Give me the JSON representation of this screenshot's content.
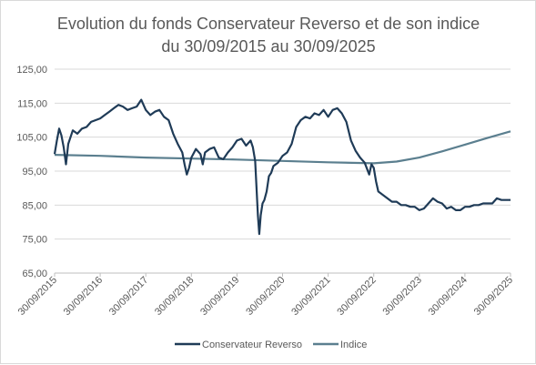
{
  "chart_data": {
    "type": "line",
    "title": "Evolution du fonds Conservateur Reverso et de son indice",
    "subtitle": "du 30/09/2015 au 30/09/2025",
    "xlabel": "",
    "ylabel": "",
    "ylim": [
      65,
      125
    ],
    "yticks": [
      "65,00",
      "75,00",
      "85,00",
      "95,00",
      "105,00",
      "115,00",
      "125,00"
    ],
    "x": [
      "30/09/2015",
      "30/09/2016",
      "30/09/2017",
      "30/09/2018",
      "30/09/2019",
      "30/09/2020",
      "30/09/2021",
      "30/09/2022",
      "30/09/2023",
      "30/09/2024",
      "30/09/2025"
    ],
    "grid": true,
    "legend_position": "bottom",
    "series": [
      {
        "name": "Conservateur Reverso",
        "color": "#1f3b57",
        "points": [
          [
            0.0,
            100.0
          ],
          [
            0.05,
            104.0
          ],
          [
            0.1,
            107.5
          ],
          [
            0.15,
            105.5
          ],
          [
            0.2,
            102.0
          ],
          [
            0.25,
            97.0
          ],
          [
            0.3,
            103.0
          ],
          [
            0.4,
            107.0
          ],
          [
            0.5,
            106.0
          ],
          [
            0.6,
            107.5
          ],
          [
            0.7,
            108.0
          ],
          [
            0.8,
            109.5
          ],
          [
            0.9,
            110.0
          ],
          [
            1.0,
            110.5
          ],
          [
            1.1,
            111.5
          ],
          [
            1.2,
            112.5
          ],
          [
            1.3,
            113.5
          ],
          [
            1.4,
            114.5
          ],
          [
            1.5,
            114.0
          ],
          [
            1.6,
            113.0
          ],
          [
            1.7,
            113.5
          ],
          [
            1.8,
            114.0
          ],
          [
            1.9,
            116.0
          ],
          [
            2.0,
            113.0
          ],
          [
            2.1,
            111.5
          ],
          [
            2.2,
            112.5
          ],
          [
            2.3,
            113.0
          ],
          [
            2.4,
            111.0
          ],
          [
            2.5,
            110.0
          ],
          [
            2.6,
            106.0
          ],
          [
            2.7,
            103.0
          ],
          [
            2.8,
            100.5
          ],
          [
            2.85,
            97.0
          ],
          [
            2.9,
            94.0
          ],
          [
            2.95,
            96.0
          ],
          [
            3.0,
            99.0
          ],
          [
            3.1,
            101.5
          ],
          [
            3.2,
            100.0
          ],
          [
            3.25,
            97.0
          ],
          [
            3.3,
            100.5
          ],
          [
            3.4,
            101.5
          ],
          [
            3.5,
            102.0
          ],
          [
            3.6,
            99.0
          ],
          [
            3.7,
            98.5
          ],
          [
            3.8,
            100.5
          ],
          [
            3.9,
            102.0
          ],
          [
            4.0,
            104.0
          ],
          [
            4.1,
            104.5
          ],
          [
            4.2,
            102.5
          ],
          [
            4.3,
            104.0
          ],
          [
            4.35,
            102.0
          ],
          [
            4.4,
            98.0
          ],
          [
            4.43,
            90.0
          ],
          [
            4.46,
            82.0
          ],
          [
            4.49,
            76.5
          ],
          [
            4.52,
            82.0
          ],
          [
            4.56,
            85.5
          ],
          [
            4.6,
            86.5
          ],
          [
            4.65,
            89.0
          ],
          [
            4.7,
            93.5
          ],
          [
            4.75,
            94.5
          ],
          [
            4.8,
            96.5
          ],
          [
            4.9,
            97.5
          ],
          [
            5.0,
            99.5
          ],
          [
            5.1,
            100.5
          ],
          [
            5.2,
            103.0
          ],
          [
            5.3,
            108.0
          ],
          [
            5.4,
            110.0
          ],
          [
            5.5,
            111.0
          ],
          [
            5.6,
            110.5
          ],
          [
            5.7,
            112.0
          ],
          [
            5.8,
            111.5
          ],
          [
            5.9,
            113.0
          ],
          [
            6.0,
            111.0
          ],
          [
            6.1,
            113.0
          ],
          [
            6.2,
            113.5
          ],
          [
            6.3,
            112.0
          ],
          [
            6.4,
            109.5
          ],
          [
            6.5,
            104.0
          ],
          [
            6.6,
            101.0
          ],
          [
            6.7,
            99.0
          ],
          [
            6.8,
            97.5
          ],
          [
            6.9,
            94.0
          ],
          [
            6.95,
            97.0
          ],
          [
            7.0,
            96.0
          ],
          [
            7.05,
            92.0
          ],
          [
            7.1,
            89.0
          ],
          [
            7.2,
            88.0
          ],
          [
            7.3,
            87.0
          ],
          [
            7.4,
            86.0
          ],
          [
            7.5,
            86.0
          ],
          [
            7.6,
            85.0
          ],
          [
            7.7,
            85.0
          ],
          [
            7.8,
            84.5
          ],
          [
            7.9,
            84.5
          ],
          [
            8.0,
            83.5
          ],
          [
            8.1,
            84.0
          ],
          [
            8.2,
            85.5
          ],
          [
            8.3,
            87.0
          ],
          [
            8.4,
            86.0
          ],
          [
            8.5,
            85.5
          ],
          [
            8.6,
            84.0
          ],
          [
            8.7,
            84.5
          ],
          [
            8.8,
            83.5
          ],
          [
            8.9,
            83.5
          ],
          [
            9.0,
            84.5
          ],
          [
            9.1,
            84.5
          ],
          [
            9.2,
            85.0
          ],
          [
            9.3,
            85.0
          ],
          [
            9.4,
            85.5
          ],
          [
            9.5,
            85.5
          ],
          [
            9.6,
            85.5
          ],
          [
            9.7,
            87.0
          ],
          [
            9.8,
            86.5
          ],
          [
            9.9,
            86.5
          ],
          [
            10.0,
            86.5
          ]
        ]
      },
      {
        "name": "Indice",
        "color": "#5b7f8f",
        "points": [
          [
            0.0,
            99.8
          ],
          [
            1.0,
            99.5
          ],
          [
            2.0,
            99.0
          ],
          [
            3.0,
            98.7
          ],
          [
            4.0,
            98.4
          ],
          [
            5.0,
            98.0
          ],
          [
            6.0,
            97.6
          ],
          [
            7.0,
            97.3
          ],
          [
            7.5,
            97.8
          ],
          [
            8.0,
            99.0
          ],
          [
            8.5,
            100.8
          ],
          [
            9.0,
            102.8
          ],
          [
            9.5,
            104.8
          ],
          [
            10.0,
            106.7
          ]
        ]
      }
    ]
  }
}
